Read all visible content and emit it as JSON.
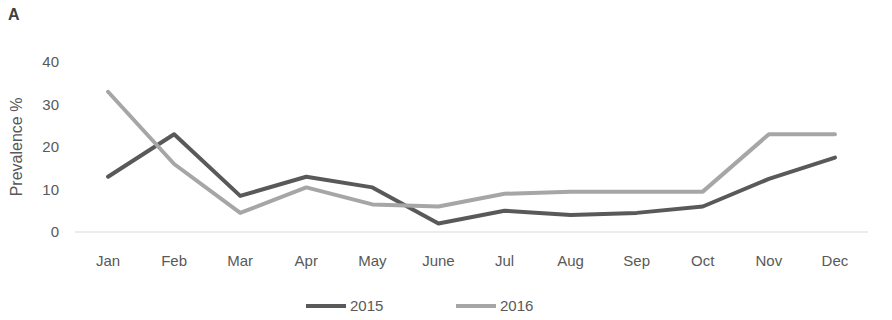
{
  "chart_data": {
    "type": "line",
    "title": "A",
    "y_label": "Prevalence %",
    "categories": [
      "Jan",
      "Feb",
      "Mar",
      "Apr",
      "May",
      "June",
      "Jul",
      "Aug",
      "Sep",
      "Oct",
      "Nov",
      "Dec"
    ],
    "series": [
      {
        "name": "2015",
        "color": "#595959",
        "values": [
          13,
          23,
          8.5,
          13,
          10.5,
          2,
          5,
          4,
          4.5,
          6,
          12.5,
          17.5
        ]
      },
      {
        "name": "2016",
        "color": "#a6a6a6",
        "values": [
          33,
          16,
          4.5,
          10.5,
          6.5,
          6,
          9,
          9.5,
          9.5,
          9.5,
          23,
          23
        ]
      }
    ],
    "ylim": [
      0,
      40
    ],
    "yticks": [
      0,
      10,
      20,
      30,
      40
    ],
    "grid": false,
    "legend": "bottom"
  }
}
